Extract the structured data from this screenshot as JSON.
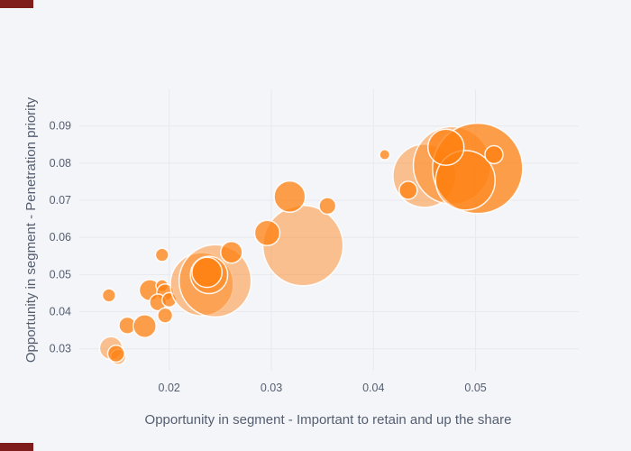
{
  "artifacts": {
    "corner_mark_color": "#7f1d1d"
  },
  "chart": {
    "background": "#f4f5f9",
    "grid_color": "#e7e9ee",
    "text_color": "#545e70",
    "marker_color": "#ff7f0e",
    "marker_line_color": "rgba(255,255,255,0.9)",
    "light_opacity": 0.45,
    "dark_opacity": 0.75,
    "xlabel": "Opportunity in segment - Important to retain and up the share",
    "ylabel": "Opportunity in segment - Penetration priority",
    "chart_data": {
      "type": "scatter",
      "subtype": "bubble",
      "title": "",
      "xlabel": "Opportunity in segment - Important to retain and up the share",
      "ylabel": "Opportunity in segment - Penetration priority",
      "grid": true,
      "legend": false,
      "x_ticks": [
        "0.02",
        "0.03",
        "0.04",
        "0.05"
      ],
      "y_ticks": [
        "0.03",
        "0.04",
        "0.05",
        "0.06",
        "0.07",
        "0.08",
        "0.09"
      ],
      "x_range": [
        0.0112,
        0.0601
      ],
      "y_range": [
        0.0241,
        0.0999
      ],
      "points": [
        {
          "x": 0.0143,
          "y": 0.0302,
          "r": 12.7,
          "s": "l"
        },
        {
          "x": 0.015,
          "y": 0.0278,
          "r": 8.5,
          "s": "l"
        },
        {
          "x": 0.0148,
          "y": 0.0287,
          "r": 9.3,
          "s": "d"
        },
        {
          "x": 0.0141,
          "y": 0.0444,
          "r": 7.3,
          "s": "d"
        },
        {
          "x": 0.0159,
          "y": 0.0363,
          "r": 9.3,
          "s": "d"
        },
        {
          "x": 0.0176,
          "y": 0.0361,
          "r": 12.7,
          "s": "d"
        },
        {
          "x": 0.0181,
          "y": 0.0458,
          "r": 11.7,
          "s": "d"
        },
        {
          "x": 0.0193,
          "y": 0.047,
          "r": 6.7,
          "s": "d"
        },
        {
          "x": 0.0196,
          "y": 0.0452,
          "r": 9.3,
          "s": "d"
        },
        {
          "x": 0.0189,
          "y": 0.0425,
          "r": 9.3,
          "s": "d"
        },
        {
          "x": 0.02,
          "y": 0.0432,
          "r": 8.0,
          "s": "d"
        },
        {
          "x": 0.0196,
          "y": 0.039,
          "r": 8.3,
          "s": "d"
        },
        {
          "x": 0.0193,
          "y": 0.0553,
          "r": 7.3,
          "s": "d"
        },
        {
          "x": 0.0232,
          "y": 0.0474,
          "r": 35.0,
          "s": "l"
        },
        {
          "x": 0.0245,
          "y": 0.0483,
          "r": 40.0,
          "s": "l"
        },
        {
          "x": 0.0239,
          "y": 0.0499,
          "r": 20.7,
          "s": "l"
        },
        {
          "x": 0.0237,
          "y": 0.0506,
          "r": 16.7,
          "s": "d"
        },
        {
          "x": 0.0261,
          "y": 0.056,
          "r": 12.0,
          "s": "d"
        },
        {
          "x": 0.0331,
          "y": 0.0578,
          "r": 44.5,
          "s": "l"
        },
        {
          "x": 0.0318,
          "y": 0.071,
          "r": 17.3,
          "s": "d"
        },
        {
          "x": 0.0296,
          "y": 0.0612,
          "r": 14.0,
          "s": "d"
        },
        {
          "x": 0.0355,
          "y": 0.0685,
          "r": 9.3,
          "s": "d"
        },
        {
          "x": 0.045,
          "y": 0.0766,
          "r": 35.0,
          "s": "l"
        },
        {
          "x": 0.0477,
          "y": 0.0794,
          "r": 43.0,
          "s": "l"
        },
        {
          "x": 0.0502,
          "y": 0.0786,
          "r": 50.0,
          "s": "d"
        },
        {
          "x": 0.049,
          "y": 0.0754,
          "r": 33.0,
          "s": "l"
        },
        {
          "x": 0.0471,
          "y": 0.0843,
          "r": 20.0,
          "s": "d"
        },
        {
          "x": 0.0518,
          "y": 0.0823,
          "r": 10.0,
          "s": "d"
        },
        {
          "x": 0.0434,
          "y": 0.0727,
          "r": 10.0,
          "s": "d"
        },
        {
          "x": 0.0411,
          "y": 0.0823,
          "r": 5.7,
          "s": "d"
        }
      ]
    }
  }
}
